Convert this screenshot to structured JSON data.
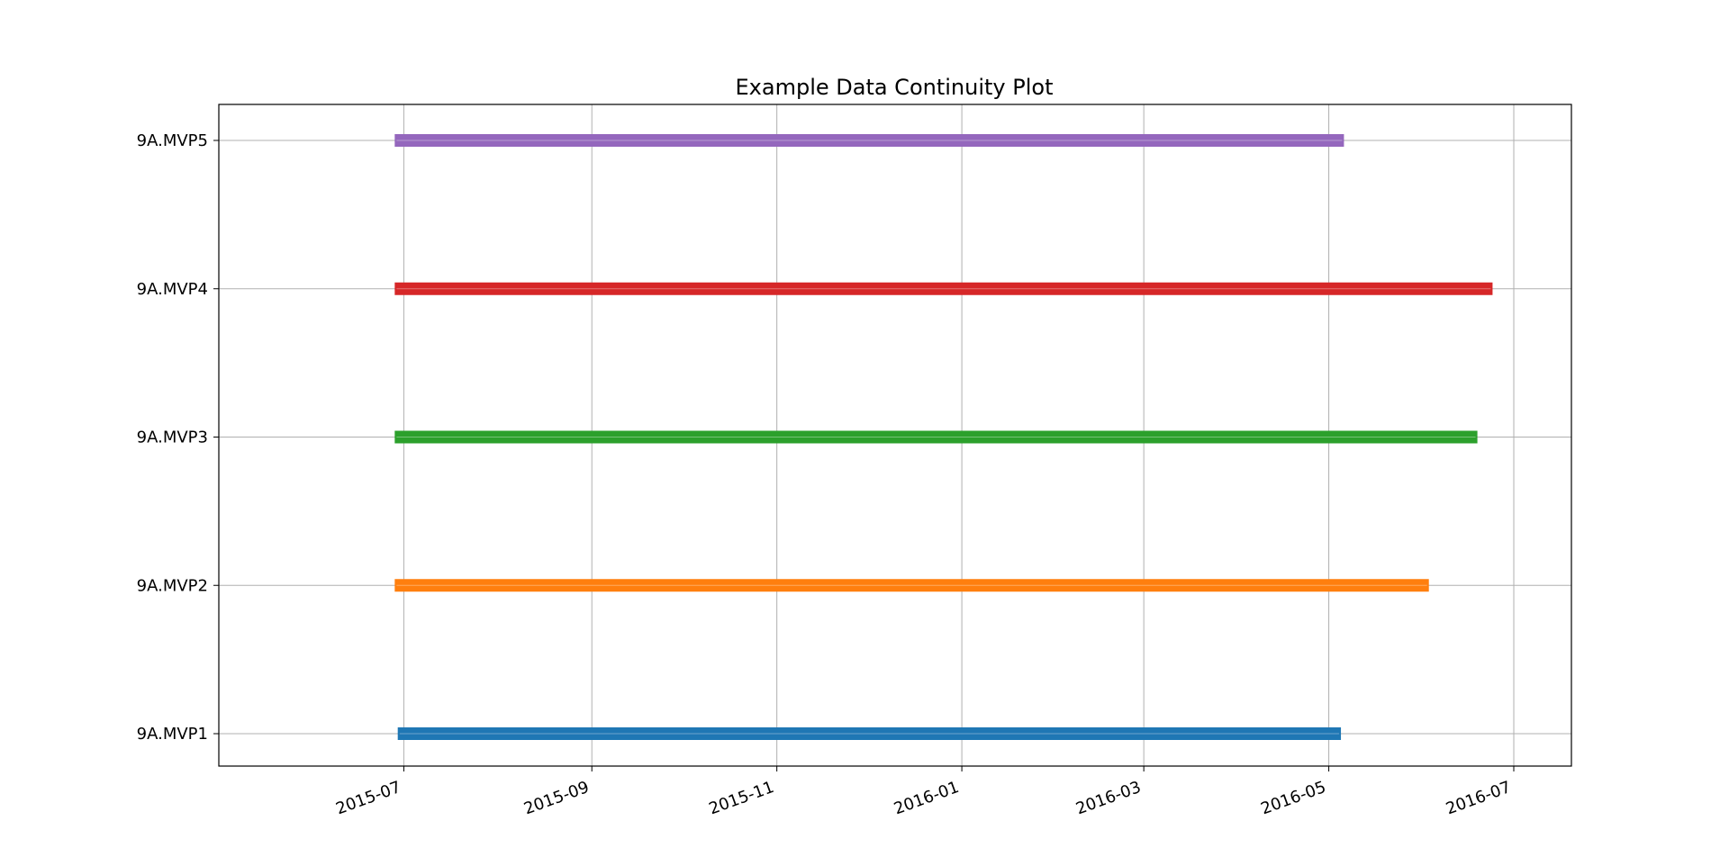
{
  "chart_data": {
    "type": "continuity",
    "title": "Example Data Continuity Plot",
    "xlabel": "",
    "ylabel": "",
    "x_axis_type": "date",
    "x_tick_labels": [
      "2015-07",
      "2015-09",
      "2015-11",
      "2016-01",
      "2016-03",
      "2016-05",
      "2016-07"
    ],
    "xlim": [
      "2015-05-01",
      "2016-07-20"
    ],
    "grid": true,
    "categories": [
      "9A.MVP1",
      "9A.MVP2",
      "9A.MVP3",
      "9A.MVP4",
      "9A.MVP5"
    ],
    "series": [
      {
        "name": "9A.MVP1",
        "start": "2015-06-29",
        "end": "2016-05-05",
        "color": "#1f77b4"
      },
      {
        "name": "9A.MVP2",
        "start": "2015-06-28",
        "end": "2016-06-03",
        "color": "#ff7f0e"
      },
      {
        "name": "9A.MVP3",
        "start": "2015-06-28",
        "end": "2016-06-19",
        "color": "#2ca02c"
      },
      {
        "name": "9A.MVP4",
        "start": "2015-06-28",
        "end": "2016-06-24",
        "color": "#d62728"
      },
      {
        "name": "9A.MVP5",
        "start": "2015-06-28",
        "end": "2016-05-06",
        "color": "#9467bd"
      }
    ]
  }
}
